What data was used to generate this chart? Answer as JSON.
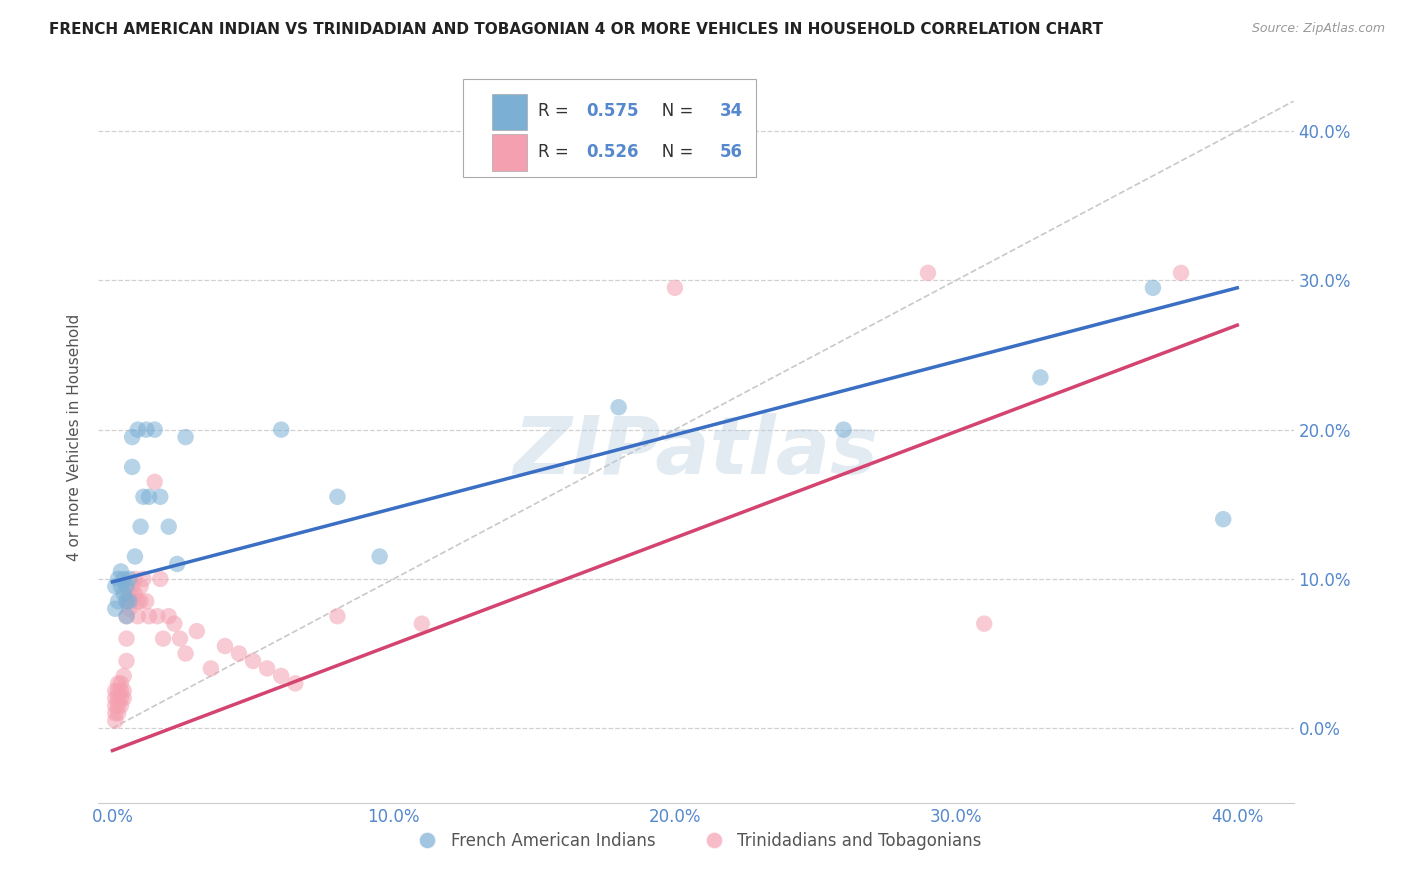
{
  "title": "FRENCH AMERICAN INDIAN VS TRINIDADIAN AND TOBAGONIAN 4 OR MORE VEHICLES IN HOUSEHOLD CORRELATION CHART",
  "source": "Source: ZipAtlas.com",
  "ylabel": "4 or more Vehicles in Household",
  "xlim": [
    -0.005,
    0.42
  ],
  "ylim": [
    -0.05,
    0.44
  ],
  "xticks": [
    0.0,
    0.1,
    0.2,
    0.3,
    0.4
  ],
  "yticks": [
    0.0,
    0.1,
    0.2,
    0.3,
    0.4
  ],
  "blue_R": 0.575,
  "blue_N": 34,
  "pink_R": 0.526,
  "pink_N": 56,
  "blue_scatter_x": [
    0.001,
    0.001,
    0.002,
    0.002,
    0.003,
    0.003,
    0.004,
    0.004,
    0.005,
    0.005,
    0.005,
    0.006,
    0.006,
    0.007,
    0.007,
    0.008,
    0.009,
    0.01,
    0.011,
    0.012,
    0.013,
    0.015,
    0.017,
    0.02,
    0.023,
    0.026,
    0.06,
    0.08,
    0.095,
    0.18,
    0.26,
    0.33,
    0.37,
    0.395
  ],
  "blue_scatter_y": [
    0.095,
    0.08,
    0.1,
    0.085,
    0.105,
    0.095,
    0.1,
    0.09,
    0.095,
    0.085,
    0.075,
    0.1,
    0.085,
    0.195,
    0.175,
    0.115,
    0.2,
    0.135,
    0.155,
    0.2,
    0.155,
    0.2,
    0.155,
    0.135,
    0.11,
    0.195,
    0.2,
    0.155,
    0.115,
    0.215,
    0.2,
    0.235,
    0.295,
    0.14
  ],
  "pink_scatter_x": [
    0.001,
    0.001,
    0.001,
    0.001,
    0.001,
    0.002,
    0.002,
    0.002,
    0.002,
    0.002,
    0.003,
    0.003,
    0.003,
    0.003,
    0.004,
    0.004,
    0.004,
    0.005,
    0.005,
    0.005,
    0.005,
    0.006,
    0.006,
    0.007,
    0.007,
    0.008,
    0.008,
    0.009,
    0.009,
    0.01,
    0.01,
    0.011,
    0.012,
    0.013,
    0.015,
    0.016,
    0.017,
    0.018,
    0.02,
    0.022,
    0.024,
    0.026,
    0.03,
    0.035,
    0.04,
    0.045,
    0.05,
    0.055,
    0.06,
    0.065,
    0.08,
    0.11,
    0.2,
    0.29,
    0.31,
    0.38
  ],
  "pink_scatter_y": [
    0.025,
    0.02,
    0.015,
    0.01,
    0.005,
    0.03,
    0.025,
    0.02,
    0.015,
    0.01,
    0.03,
    0.025,
    0.02,
    0.015,
    0.035,
    0.025,
    0.02,
    0.085,
    0.075,
    0.06,
    0.045,
    0.09,
    0.08,
    0.095,
    0.085,
    0.1,
    0.09,
    0.085,
    0.075,
    0.095,
    0.085,
    0.1,
    0.085,
    0.075,
    0.165,
    0.075,
    0.1,
    0.06,
    0.075,
    0.07,
    0.06,
    0.05,
    0.065,
    0.04,
    0.055,
    0.05,
    0.045,
    0.04,
    0.035,
    0.03,
    0.075,
    0.07,
    0.295,
    0.305,
    0.07,
    0.305
  ],
  "blue_line_x": [
    0.0,
    0.4
  ],
  "blue_line_y": [
    0.098,
    0.295
  ],
  "pink_line_x": [
    0.0,
    0.4
  ],
  "pink_line_y": [
    -0.015,
    0.27
  ],
  "diag_line_x": [
    0.0,
    0.42
  ],
  "diag_line_y": [
    0.0,
    0.42
  ],
  "blue_color": "#7BAFD4",
  "pink_color": "#F4A0B0",
  "blue_line_color": "#3A6FC4",
  "pink_line_color": "#D44470",
  "diag_color": "#BBBBBB",
  "watermark_text": "ZIPatlas",
  "watermark_color": "#B8CCDF",
  "legend_blue_label": "French American Indians",
  "legend_pink_label": "Trinidadians and Tobagonians",
  "background_color": "#FFFFFF",
  "grid_color": "#CCCCCC",
  "tick_color": "#5588CC"
}
